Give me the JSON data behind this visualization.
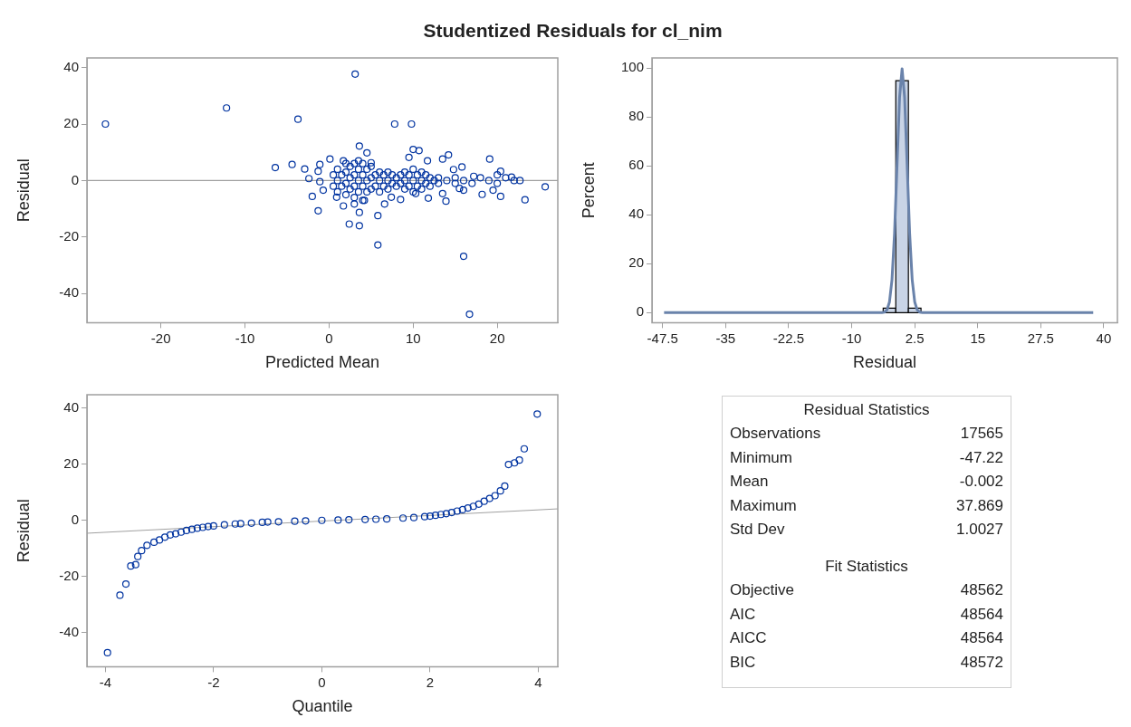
{
  "chart_data": [
    {
      "type": "scatter",
      "title": "Studentized Residuals for cl_nim",
      "xlabel": "Predicted Mean",
      "ylabel": "Residual",
      "marker": "circle",
      "xlim": [
        -28.8,
        27.2
      ],
      "xticks": [
        -20,
        -10,
        0,
        10,
        20
      ],
      "ylim": [
        -50.3,
        43.4
      ],
      "yticks": [
        -40,
        -20,
        0,
        20,
        40
      ],
      "ref_lines": [
        {
          "axis": "y",
          "value": 0,
          "color": "#a0a0a0"
        }
      ],
      "series": [
        {
          "type": "scatter",
          "color": "#0033a0",
          "x": [
            -26.6,
            -12.2,
            -3.7,
            3.1,
            7.8,
            9.8,
            3.6,
            -6.4,
            -4.4,
            -2.9,
            -2.4,
            -2.0,
            -1.3,
            1.7,
            2.4,
            3.6,
            3.6,
            5.8,
            5.8,
            16.0,
            16.7,
            25.7,
            23.3,
            20.4,
            19.5,
            18.2,
            19.1,
            14.2,
            13.5,
            10.7,
            10.0,
            9.5,
            4.5,
            11.8,
            13.9,
            13.5,
            6.6,
            8.5,
            22.7,
            21.7,
            20.4,
            15.8,
            17.2,
            14.8,
            11.7,
            5.0,
            0.1,
            1.7,
            -1.1,
            -1.3,
            -1.1,
            -0.7,
            0.9,
            3.0,
            4.2,
            7.4,
            10.3,
            16.0,
            15.5,
            0.5,
            0.5,
            1,
            1,
            1,
            1.5,
            1.5,
            2,
            2,
            2,
            2,
            2.5,
            2.5,
            2.5,
            3,
            3,
            3,
            3,
            3.5,
            3.5,
            3.5,
            3.5,
            4,
            4,
            4,
            4,
            4.5,
            4.5,
            4.5,
            5,
            5,
            5,
            5.5,
            5.5,
            6,
            6,
            6,
            6.5,
            6.5,
            7,
            7,
            7,
            7.5,
            7.5,
            8,
            8,
            8.5,
            8.5,
            9,
            9,
            9,
            9.5,
            9.5,
            10,
            10,
            10,
            10.5,
            10.5,
            11,
            11,
            11,
            11.5,
            11.5,
            12,
            12,
            12.5,
            13,
            13,
            14,
            15,
            15,
            16,
            17,
            18,
            19,
            20,
            20,
            21,
            22
          ],
          "values": [
            20,
            25.7,
            21.7,
            37.7,
            20,
            20,
            12.2,
            4.6,
            5.7,
            4.1,
            0.7,
            -5.6,
            -10.7,
            -9,
            -15.4,
            -16,
            -11.3,
            -12.4,
            -22.8,
            -26.8,
            -47.3,
            -2.2,
            -6.8,
            -5.6,
            -3.4,
            -4.9,
            7.6,
            9.1,
            7.6,
            10.6,
            11,
            8.2,
            9.8,
            -6.2,
            -7.3,
            -4.6,
            -8.3,
            -6.7,
            0,
            1.2,
            3.3,
            4.8,
            1.5,
            3.9,
            7,
            6.3,
            7.6,
            7,
            5.7,
            3.3,
            -0.4,
            -3.4,
            -5.9,
            -8.3,
            -7,
            -5.9,
            -4.6,
            -3.4,
            -2.8,
            -2,
            2,
            -4,
            0,
            4,
            -2,
            2,
            -5,
            -1,
            3,
            6,
            -3,
            1,
            5,
            -6,
            -2,
            2,
            6,
            -4,
            0,
            4,
            7,
            -7,
            -2,
            2,
            6,
            -4,
            0,
            4,
            -3,
            1,
            5,
            -2,
            2,
            -4,
            0,
            3,
            -2,
            2,
            -3,
            0,
            3,
            -1,
            2,
            -2,
            1,
            -1,
            2,
            -3,
            0,
            3,
            -2,
            2,
            -4,
            0,
            4,
            -2,
            2,
            -3,
            0,
            3,
            -1,
            2,
            -2,
            1,
            0,
            -1,
            1,
            0,
            -1,
            1,
            0,
            -1,
            1,
            0,
            2,
            -1,
            1,
            0
          ]
        }
      ]
    },
    {
      "type": "histogram",
      "xlabel": "Residual",
      "ylabel": "Percent",
      "color": "#c9d4e6",
      "bins": [
        -3.75,
        -1.25,
        1.25,
        3.75
      ],
      "values": [
        1.8,
        94.8,
        1.8
      ],
      "xlim": [
        -49.6,
        42.7
      ],
      "xticks": [
        -47.5,
        -35,
        -22.5,
        -10,
        2.5,
        15,
        27.5,
        40
      ],
      "ylim": [
        -4.1,
        104.1
      ],
      "yticks": [
        0,
        20,
        40,
        60,
        80,
        100
      ],
      "series": [
        {
          "type": "line",
          "color": "#6a83ab",
          "x": [
            -47.2,
            -4,
            -3.5,
            -3,
            -2.5,
            -2,
            -1.5,
            -1,
            -0.5,
            0,
            0.5,
            1,
            1.5,
            2,
            2.5,
            3,
            3.5,
            4,
            37.9
          ],
          "values": [
            0,
            0,
            0.2,
            1.1,
            4.4,
            13.5,
            32.4,
            60.5,
            88,
            99.7,
            88,
            60.5,
            32.4,
            13.5,
            4.4,
            1.1,
            0.2,
            0,
            0
          ]
        }
      ]
    },
    {
      "type": "scatter",
      "xlabel": "Quantile",
      "ylabel": "Residual",
      "xlim": [
        -4.34,
        4.36
      ],
      "xticks": [
        -4,
        -2,
        0,
        2,
        4
      ],
      "ylim": [
        -52.2,
        44.8
      ],
      "yticks": [
        -40,
        -20,
        0,
        20,
        40
      ],
      "series": [
        {
          "type": "scatter",
          "marker": "circle",
          "color": "#0033a0",
          "x": [
            -3.96,
            -3.73,
            -3.62,
            -3.53,
            -3.44,
            -3.4,
            -3.33,
            -3.23,
            -3.1,
            -3.0,
            -2.9,
            -2.8,
            -2.7,
            -2.6,
            -2.5,
            -2.4,
            -2.3,
            -2.2,
            -2.1,
            -2,
            -1.8,
            -1.6,
            -1.5,
            -1.3,
            -1.1,
            -1,
            -0.8,
            -0.5,
            -0.3,
            0,
            0.3,
            0.5,
            0.8,
            1,
            1.2,
            1.5,
            1.7,
            1.9,
            2,
            2.1,
            2.2,
            2.3,
            2.4,
            2.5,
            2.6,
            2.7,
            2.8,
            2.9,
            3.0,
            3.1,
            3.2,
            3.3,
            3.38,
            3.45,
            3.56,
            3.65,
            3.74,
            3.98
          ],
          "values": [
            -47.2,
            -26.7,
            -22.7,
            -16.3,
            -15.8,
            -12.9,
            -10.8,
            -8.9,
            -7.8,
            -7,
            -6,
            -5.2,
            -4.8,
            -4.2,
            -3.6,
            -3.2,
            -2.8,
            -2.5,
            -2.2,
            -2,
            -1.6,
            -1.3,
            -1.2,
            -1,
            -0.7,
            -0.6,
            -0.5,
            -0.3,
            -0.2,
            0,
            0.1,
            0.2,
            0.3,
            0.4,
            0.5,
            0.8,
            1,
            1.3,
            1.5,
            1.8,
            2.1,
            2.4,
            2.8,
            3.3,
            3.8,
            4.4,
            5,
            5.8,
            6.8,
            7.8,
            8.8,
            10.5,
            12.2,
            19.9,
            20.5,
            21.5,
            25.5,
            37.9
          ]
        },
        {
          "type": "line",
          "marker": "none",
          "color": "#a0a0a0",
          "x": [
            -4.34,
            4.36
          ],
          "values": [
            -4.6,
            4.1
          ]
        }
      ]
    },
    {
      "type": "other",
      "title": "Residual Statistics",
      "data_labels": true,
      "categories": [
        "Observations",
        "Minimum",
        "Mean",
        "Maximum",
        "Std Dev"
      ],
      "values": [
        17565,
        -47.22,
        -0.002,
        37.869,
        1.0027
      ]
    },
    {
      "type": "other",
      "title": "Fit Statistics",
      "data_labels": true,
      "categories": [
        "Objective",
        "AIC",
        "AICC",
        "BIC"
      ],
      "values": [
        48562,
        48564,
        48564,
        48572
      ]
    }
  ]
}
